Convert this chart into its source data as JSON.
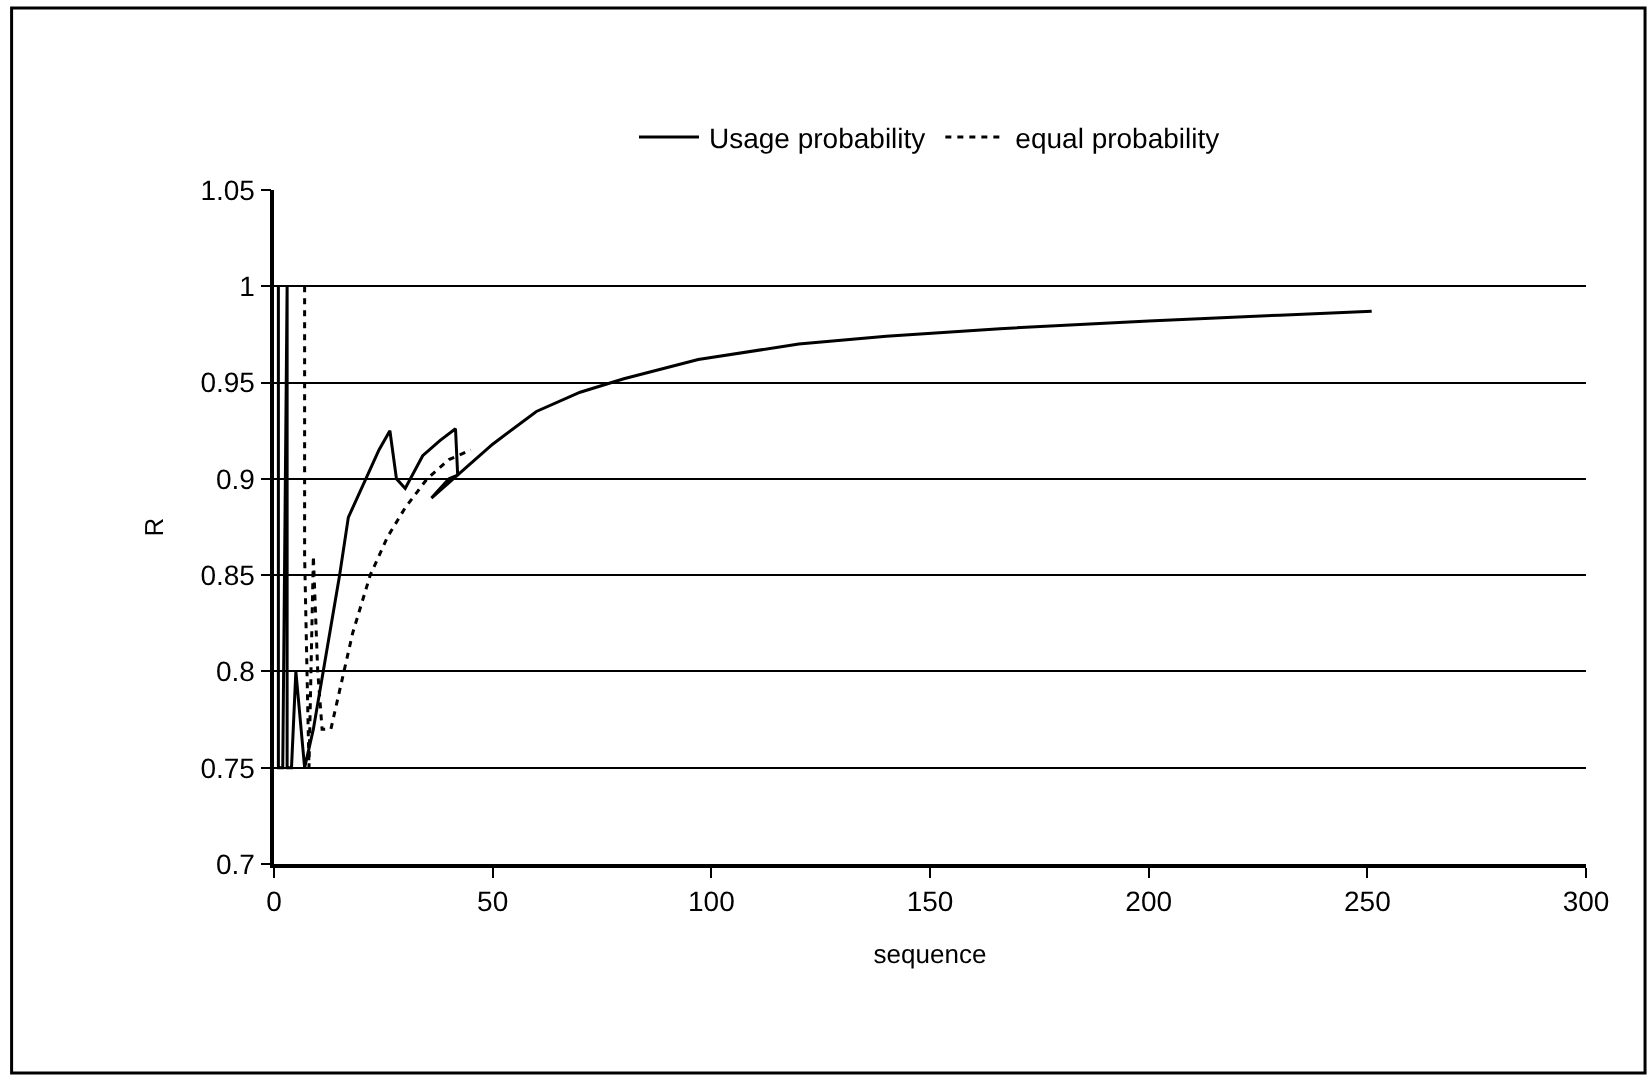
{
  "chart_data": {
    "type": "line",
    "xlabel": "sequence",
    "ylabel": "R",
    "series": [
      {
        "name": "Usage probability",
        "color": "#000000",
        "line_style": "solid",
        "x": [
          1,
          1,
          2,
          3,
          3,
          4,
          5,
          7,
          9,
          12,
          15,
          17,
          21,
          24,
          26.5,
          28,
          30,
          34,
          38,
          41.5,
          42,
          40,
          36,
          45,
          50,
          60,
          70,
          80,
          97,
          120,
          140,
          166,
          200,
          230,
          251
        ],
        "values": [
          1.0,
          0.75,
          0.75,
          1.0,
          0.75,
          0.75,
          0.8,
          0.75,
          0.77,
          0.81,
          0.85,
          0.88,
          0.9,
          0.915,
          0.925,
          0.9,
          0.895,
          0.912,
          0.92,
          0.926,
          0.902,
          0.9,
          0.89,
          0.908,
          0.918,
          0.935,
          0.945,
          0.952,
          0.962,
          0.97,
          0.974,
          0.978,
          0.982,
          0.985,
          0.987
        ]
      },
      {
        "name": "equal probability",
        "color": "#000000",
        "line_style": "dotted",
        "x": [
          7,
          7,
          8,
          9,
          10,
          11,
          13,
          15,
          18,
          22,
          26,
          30,
          35,
          40,
          45
        ],
        "values": [
          1.0,
          0.86,
          0.75,
          0.86,
          0.8,
          0.77,
          0.77,
          0.79,
          0.82,
          0.85,
          0.87,
          0.885,
          0.9,
          0.91,
          0.915
        ]
      }
    ],
    "xlim": [
      0,
      300
    ],
    "xticks": [
      0,
      50,
      100,
      150,
      200,
      250,
      300
    ],
    "ylim": [
      0.7,
      1.05
    ],
    "yticks": [
      0.7,
      0.75,
      0.8,
      0.85,
      0.9,
      0.95,
      1,
      1.05
    ],
    "grid": "y",
    "legend": "top",
    "marker": "none"
  }
}
